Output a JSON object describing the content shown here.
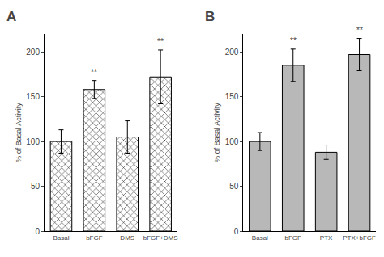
{
  "chart_data": [
    {
      "type": "bar",
      "title": "A",
      "categories": [
        "Basal",
        "bFGF",
        "DMS",
        "bFGF+DMS"
      ],
      "values": [
        100,
        158,
        105,
        172
      ],
      "errors": [
        13,
        10,
        18,
        30
      ],
      "color": "#ffffff",
      "ylabel": "% of Basal Activity",
      "ylim": [
        0,
        220
      ],
      "yticks": [
        0,
        50,
        100,
        150,
        200
      ],
      "grid": false,
      "annotations": [
        {
          "category": "bFGF",
          "text": "**"
        },
        {
          "category": "bFGF+DMS",
          "text": "**"
        }
      ]
    },
    {
      "type": "bar",
      "title": "B",
      "categories": [
        "Basal",
        "bFGF",
        "PTX",
        "PTX+bFGF"
      ],
      "values": [
        100,
        185,
        88,
        197
      ],
      "errors": [
        10,
        18,
        8,
        18
      ],
      "color": "#b8b8b8",
      "ylabel": "% of Basal Activity",
      "ylim": [
        0,
        220
      ],
      "yticks": [
        0,
        50,
        100,
        150,
        200
      ],
      "grid": false,
      "annotations": [
        {
          "category": "bFGF",
          "text": "**"
        },
        {
          "category": "PTX+bFGF",
          "text": "**"
        }
      ]
    }
  ]
}
